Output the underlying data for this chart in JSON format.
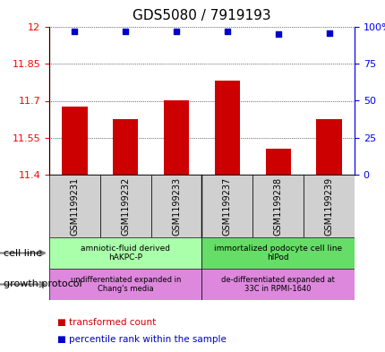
{
  "title": "GDS5080 / 7919193",
  "samples": [
    "GSM1199231",
    "GSM1199232",
    "GSM1199233",
    "GSM1199237",
    "GSM1199238",
    "GSM1199239"
  ],
  "bar_values": [
    11.675,
    11.625,
    11.7,
    11.78,
    11.505,
    11.625
  ],
  "percentile_values": [
    97,
    97,
    97,
    97,
    95,
    96
  ],
  "ylim": [
    11.4,
    12.0
  ],
  "y_ticks": [
    11.4,
    11.55,
    11.7,
    11.85,
    12.0
  ],
  "y_tick_labels": [
    "11.4",
    "11.55",
    "11.7",
    "11.85",
    "12"
  ],
  "y2_ticks": [
    0,
    25,
    50,
    75,
    100
  ],
  "y2_tick_labels": [
    "0",
    "25",
    "50",
    "75",
    "100%"
  ],
  "bar_color": "#cc0000",
  "dot_color": "#0000cc",
  "bar_bottom": 11.4,
  "cell_line_groups": [
    {
      "label": "amniotic-fluid derived\nhAKPC-P",
      "start": 0,
      "end": 3,
      "color": "#aaffaa"
    },
    {
      "label": "immortalized podocyte cell line\nhIPod",
      "start": 3,
      "end": 6,
      "color": "#66dd66"
    }
  ],
  "growth_protocol_groups": [
    {
      "label": "undifferentiated expanded in\nChang's media",
      "start": 0,
      "end": 3,
      "color": "#dd88dd"
    },
    {
      "label": "de-differentiated expanded at\n33C in RPMI-1640",
      "start": 3,
      "end": 6,
      "color": "#dd88dd"
    }
  ],
  "cell_line_label": "cell line",
  "growth_protocol_label": "growth protocol",
  "legend_items": [
    {
      "color": "#cc0000",
      "label": "transformed count"
    },
    {
      "color": "#0000cc",
      "label": "percentile rank within the sample"
    }
  ],
  "background_color": "#ffffff",
  "plot_bg_color": "#ffffff"
}
